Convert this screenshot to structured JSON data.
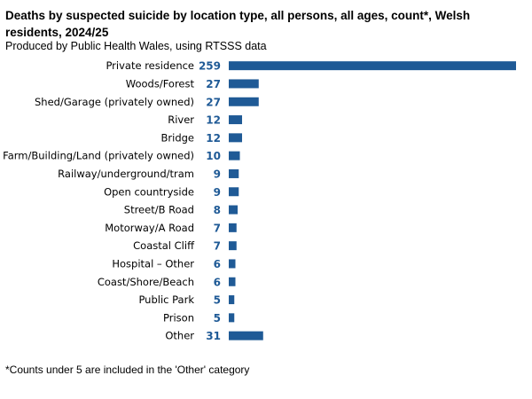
{
  "title": "Deaths by suspected suicide by location type, all persons, all ages, count*, Welsh residents, 2024/25",
  "subtitle": "Produced by Public Health Wales, using RTSSS data",
  "footnote": "*Counts under 5 are included in the 'Other' category",
  "colors": {
    "bar": "#1f5a96",
    "value_label": "#1f5a96"
  },
  "chart_data": {
    "type": "bar",
    "orientation": "horizontal",
    "title": "Deaths by suspected suicide by location type, all persons, all ages, count*, Welsh residents, 2024/25",
    "xlabel": "",
    "ylabel": "",
    "grid": false,
    "xlim": [
      0,
      259
    ],
    "categories": [
      "Private residence",
      "Woods/Forest",
      "Shed/Garage (privately owned)",
      "River",
      "Bridge",
      "Farm/Building/Land (privately owned)",
      "Railway/underground/tram",
      "Open countryside",
      "Street/B Road",
      "Motorway/A Road",
      "Coastal Cliff",
      "Hospital – Other",
      "Coast/Shore/Beach",
      "Public Park",
      "Prison",
      "Other"
    ],
    "values": [
      259,
      27,
      27,
      12,
      12,
      10,
      9,
      9,
      8,
      7,
      7,
      6,
      6,
      5,
      5,
      31
    ]
  }
}
